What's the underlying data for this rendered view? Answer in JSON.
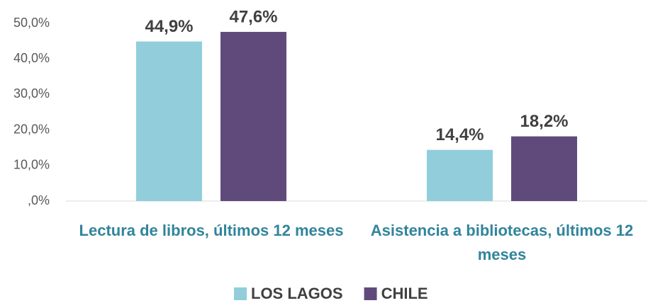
{
  "chart_data": {
    "type": "bar",
    "categories": [
      "Lectura de libros, últimos 12 meses",
      "Asistencia a bibliotecas, últimos 12 meses"
    ],
    "series": [
      {
        "name": "LOS LAGOS",
        "color": "#92cddc",
        "values": [
          44.9,
          14.4
        ],
        "value_labels": [
          "44,9%",
          "14,4%"
        ]
      },
      {
        "name": "CHILE",
        "color": "#604a7b",
        "values": [
          47.6,
          18.2
        ],
        "value_labels": [
          "47,6%",
          "18,2%"
        ]
      }
    ],
    "ylim": [
      0,
      50
    ],
    "yticks": [
      {
        "value": 0,
        "label": ",0%"
      },
      {
        "value": 10,
        "label": "10,0%"
      },
      {
        "value": 20,
        "label": "20,0%"
      },
      {
        "value": 30,
        "label": "30,0%"
      },
      {
        "value": 40,
        "label": "40,0%"
      },
      {
        "value": 50,
        "label": "50,0%"
      }
    ],
    "grid": false,
    "legend": "bottom"
  }
}
